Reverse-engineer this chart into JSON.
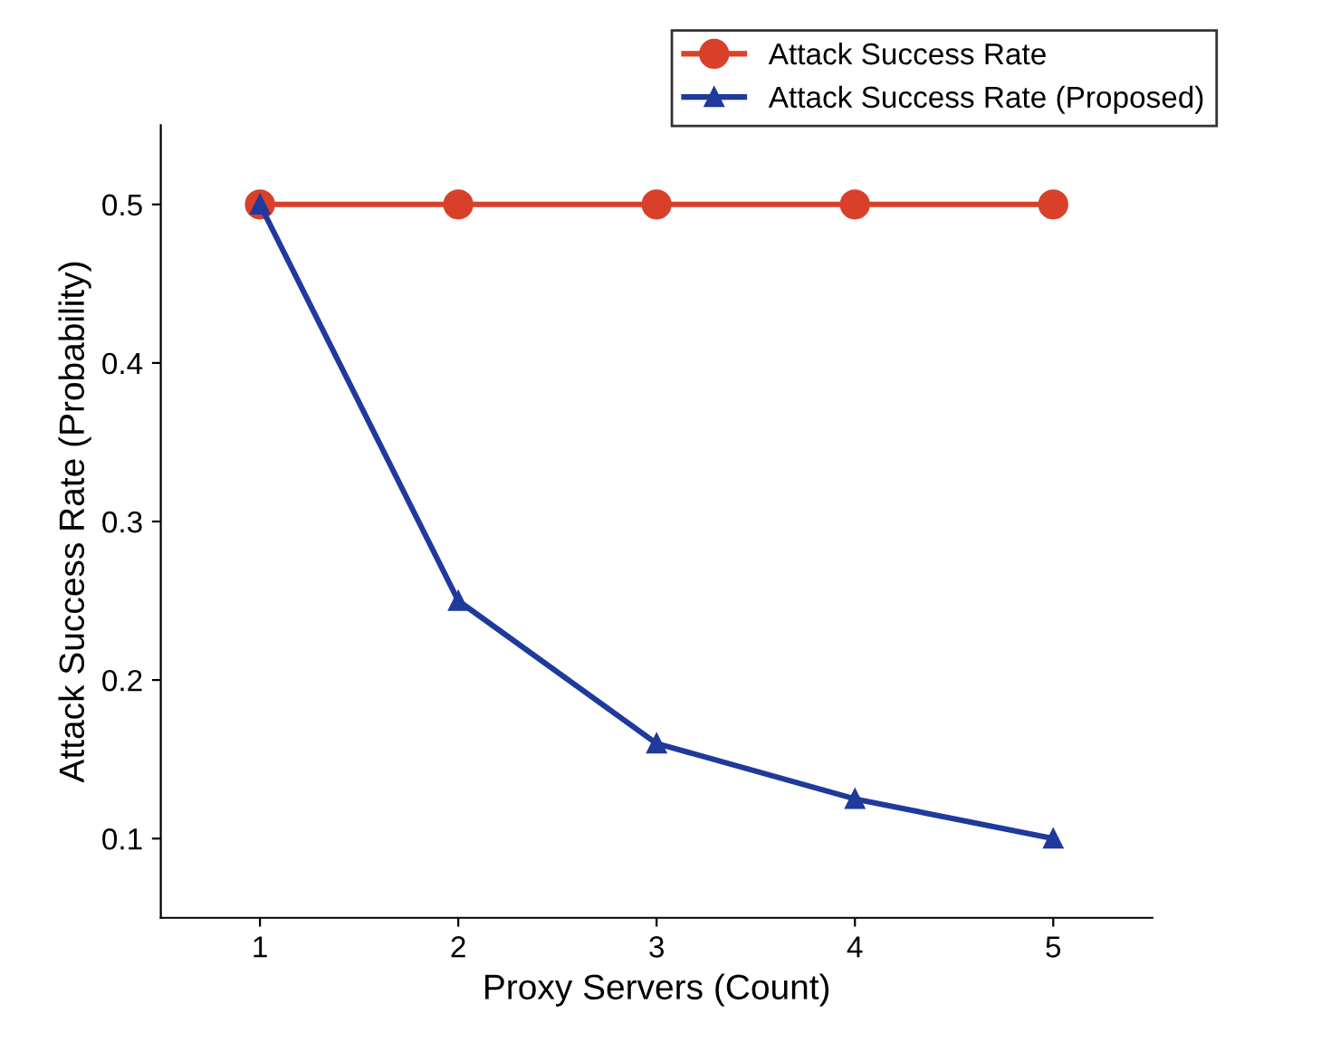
{
  "chart_data": {
    "type": "line",
    "xlabel": "Proxy Servers (Count)",
    "ylabel": "Attack Success Rate (Probability)",
    "x": [
      1,
      2,
      3,
      4,
      5
    ],
    "series": [
      {
        "name": "Attack Success Rate",
        "color": "#d9402a",
        "marker": "circle",
        "values": [
          0.5,
          0.5,
          0.5,
          0.5,
          0.5
        ]
      },
      {
        "name": "Attack Success Rate (Proposed)",
        "color": "#1f3a9c",
        "marker": "triangle",
        "values": [
          0.5,
          0.25,
          0.16,
          0.125,
          0.1
        ]
      }
    ],
    "xlim": [
      0.5,
      5.5
    ],
    "ylim": [
      0.05,
      0.55
    ],
    "xticks": [
      1,
      2,
      3,
      4,
      5
    ],
    "yticks": [
      0.1,
      0.2,
      0.3,
      0.4,
      0.5
    ],
    "grid": false,
    "legend": "top right",
    "line_style": "solid"
  }
}
